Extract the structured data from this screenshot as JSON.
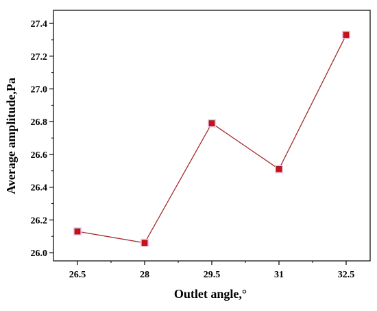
{
  "chart_data": {
    "type": "line",
    "xlabel": "Outlet angle,°",
    "ylabel": "Average amplitude,Pa",
    "categories": [
      "26.5",
      "28",
      "29.5",
      "31",
      "32.5"
    ],
    "series": [
      {
        "values": [
          26.13,
          26.06,
          26.79,
          26.51,
          27.33
        ]
      }
    ],
    "ylim": [
      25.95,
      27.48
    ],
    "yticks": [
      26.0,
      26.2,
      26.4,
      26.6,
      26.8,
      27.0,
      27.2,
      27.4
    ],
    "ytick_labels": [
      "26.0",
      "26.2",
      "26.4",
      "26.6",
      "26.8",
      "27.0",
      "27.2",
      "27.4"
    ],
    "grid": false,
    "line_color": "#a52a2a",
    "marker_color": "#cc1111"
  }
}
